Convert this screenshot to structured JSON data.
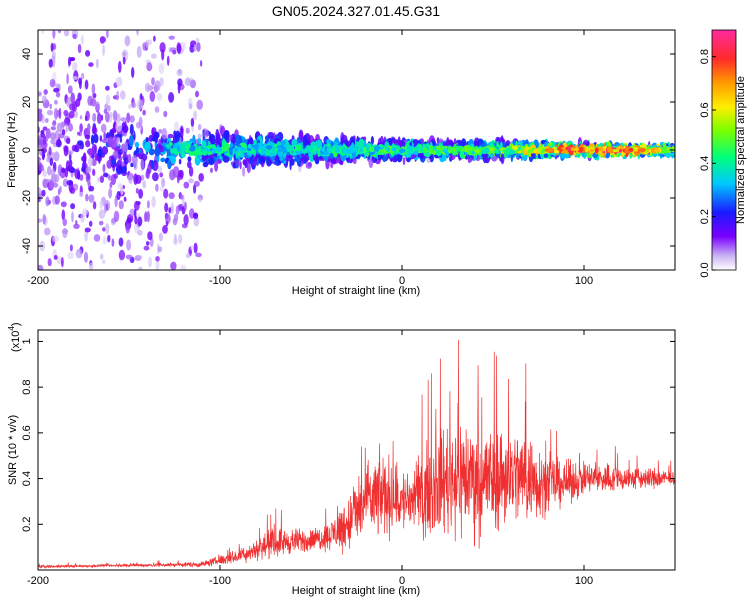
{
  "title": "GN05.2024.327.01.45.G31",
  "chart_data": [
    {
      "type": "heatmap",
      "xlabel": "Height of straight line (km)",
      "ylabel": "Frequency (Hz)",
      "xlim": [
        -200,
        150
      ],
      "ylim": [
        -50,
        50
      ],
      "xticks": [
        -200,
        -100,
        0,
        100
      ],
      "yticks": [
        -40,
        -20,
        0,
        20,
        40
      ],
      "colorbar": {
        "label": "Normalized spectral amplitude",
        "range": [
          0,
          0.9
        ],
        "ticks": [
          0,
          0.2,
          0.4,
          0.6,
          0.8
        ]
      },
      "description_values": {
        "ridge_frequency_hz": 0,
        "ridge_spread_hz_by_height": [
          [
            -200,
            45
          ],
          [
            -130,
            12
          ],
          [
            -100,
            10
          ],
          [
            -50,
            8
          ],
          [
            0,
            5
          ],
          [
            50,
            5
          ],
          [
            100,
            3
          ],
          [
            150,
            2
          ]
        ],
        "peak_amplitude_by_height": [
          [
            -200,
            0.15
          ],
          [
            -150,
            0.3
          ],
          [
            -120,
            0.45
          ],
          [
            -50,
            0.45
          ],
          [
            0,
            0.5
          ],
          [
            50,
            0.55
          ],
          [
            90,
            0.85
          ],
          [
            120,
            0.9
          ],
          [
            150,
            0.6
          ]
        ]
      }
    },
    {
      "type": "line",
      "xlabel": "Height of straight line (km)",
      "ylabel": "SNR (10 * v/v)",
      "yscale_label": "(x10",
      "yscale_exp": "4",
      "xlim": [
        -200,
        150
      ],
      "ylim": [
        0,
        1.05
      ],
      "xticks": [
        -200,
        -100,
        0,
        100
      ],
      "yticks": [
        0.2,
        0.4,
        0.6,
        0.8,
        1
      ],
      "series": [
        {
          "color": "#f03030",
          "baseline": [
            [
              -200,
              0.015
            ],
            [
              -150,
              0.02
            ],
            [
              -110,
              0.025
            ],
            [
              -90,
              0.06
            ],
            [
              -70,
              0.12
            ],
            [
              -50,
              0.13
            ],
            [
              -40,
              0.15
            ],
            [
              -30,
              0.2
            ],
            [
              -20,
              0.3
            ],
            [
              -10,
              0.33
            ],
            [
              0,
              0.3
            ],
            [
              10,
              0.32
            ],
            [
              20,
              0.38
            ],
            [
              30,
              0.42
            ],
            [
              40,
              0.4
            ],
            [
              50,
              0.4
            ],
            [
              60,
              0.42
            ],
            [
              70,
              0.4
            ],
            [
              80,
              0.38
            ],
            [
              90,
              0.38
            ],
            [
              100,
              0.4
            ],
            [
              120,
              0.4
            ],
            [
              140,
              0.4
            ],
            [
              150,
              0.4
            ]
          ],
          "spread": [
            [
              -200,
              0.01
            ],
            [
              -150,
              0.01
            ],
            [
              -110,
              0.02
            ],
            [
              -90,
              0.05
            ],
            [
              -70,
              0.1
            ],
            [
              -50,
              0.08
            ],
            [
              -40,
              0.1
            ],
            [
              -30,
              0.2
            ],
            [
              -20,
              0.28
            ],
            [
              -10,
              0.3
            ],
            [
              0,
              0.22
            ],
            [
              10,
              0.28
            ],
            [
              20,
              0.35
            ],
            [
              30,
              0.45
            ],
            [
              40,
              0.4
            ],
            [
              50,
              0.38
            ],
            [
              60,
              0.35
            ],
            [
              70,
              0.33
            ],
            [
              80,
              0.2
            ],
            [
              90,
              0.15
            ],
            [
              100,
              0.12
            ],
            [
              130,
              0.08
            ],
            [
              140,
              0.08
            ],
            [
              150,
              0.04
            ]
          ]
        }
      ]
    }
  ]
}
